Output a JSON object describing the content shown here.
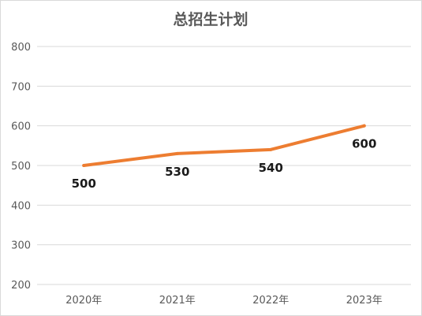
{
  "chart_data": {
    "type": "line",
    "title": "总招生计划",
    "xlabel": "",
    "ylabel": "",
    "categories": [
      "2020年",
      "2021年",
      "2022年",
      "2023年"
    ],
    "series": [
      {
        "values": [
          500,
          530,
          540,
          600
        ],
        "color": "#ED7D31"
      }
    ],
    "ylim": [
      200,
      800
    ],
    "yticks": [
      200,
      300,
      400,
      500,
      600,
      700,
      800
    ],
    "grid": true,
    "legend": "none",
    "data_labels": [
      "500",
      "530",
      "540",
      "600"
    ]
  }
}
